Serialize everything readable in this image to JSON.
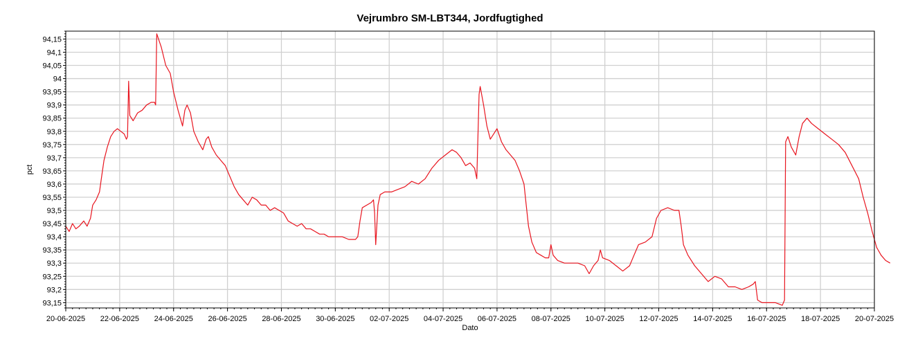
{
  "chart_data": {
    "type": "line",
    "title": "Vejrumbro SM-LBT344, Jordfugtighed",
    "xlabel": "Dato",
    "ylabel": "pct",
    "grid": true,
    "xlim": [
      "2025-06-20",
      "2025-07-20"
    ],
    "ylim": [
      93.13,
      94.18
    ],
    "y_ticks": [
      93.15,
      93.2,
      93.25,
      93.3,
      93.35,
      93.4,
      93.45,
      93.5,
      93.55,
      93.6,
      93.65,
      93.7,
      93.75,
      93.8,
      93.85,
      93.9,
      93.95,
      94,
      94.05,
      94.1,
      94.15
    ],
    "y_tick_labels": [
      "93,15",
      "93,2",
      "93,25",
      "93,3",
      "93,35",
      "93,4",
      "93,45",
      "93,5",
      "93,55",
      "93,6",
      "93,65",
      "93,7",
      "93,75",
      "93,8",
      "93,85",
      "93,9",
      "93,95",
      "94",
      "94,05",
      "94,1",
      "94,15"
    ],
    "x_ticks": [
      "2025-06-20",
      "2025-06-22",
      "2025-06-24",
      "2025-06-26",
      "2025-06-28",
      "2025-06-30",
      "2025-07-02",
      "2025-07-04",
      "2025-07-06",
      "2025-07-08",
      "2025-07-10",
      "2025-07-12",
      "2025-07-14",
      "2025-07-16",
      "2025-07-18",
      "2025-07-20"
    ],
    "x_tick_labels": [
      "20-06-2025",
      "22-06-2025",
      "24-06-2025",
      "26-06-2025",
      "28-06-2025",
      "30-06-2025",
      "02-07-2025",
      "04-07-2025",
      "06-07-2025",
      "08-07-2025",
      "10-07-2025",
      "12-07-2025",
      "14-07-2025",
      "16-07-2025",
      "18-07-2025",
      "20-07-2025"
    ],
    "series": [
      {
        "color": "#e8141e",
        "points": [
          [
            "2025-06-20 00:00",
            93.44
          ],
          [
            "2025-06-20 03:00",
            93.42
          ],
          [
            "2025-06-20 06:00",
            93.45
          ],
          [
            "2025-06-20 09:00",
            93.43
          ],
          [
            "2025-06-20 12:00",
            93.44
          ],
          [
            "2025-06-20 16:00",
            93.46
          ],
          [
            "2025-06-20 19:00",
            93.44
          ],
          [
            "2025-06-20 22:00",
            93.47
          ],
          [
            "2025-06-21 00:00",
            93.52
          ],
          [
            "2025-06-21 03:00",
            93.54
          ],
          [
            "2025-06-21 06:00",
            93.57
          ],
          [
            "2025-06-21 08:00",
            93.63
          ],
          [
            "2025-06-21 10:00",
            93.69
          ],
          [
            "2025-06-21 13:00",
            93.74
          ],
          [
            "2025-06-21 16:00",
            93.78
          ],
          [
            "2025-06-21 19:00",
            93.8
          ],
          [
            "2025-06-21 22:00",
            93.81
          ],
          [
            "2025-06-22 01:00",
            93.8
          ],
          [
            "2025-06-22 04:00",
            93.79
          ],
          [
            "2025-06-22 06:00",
            93.77
          ],
          [
            "2025-06-22 07:00",
            93.78
          ],
          [
            "2025-06-22 08:00",
            93.99
          ],
          [
            "2025-06-22 09:00",
            93.86
          ],
          [
            "2025-06-22 12:00",
            93.84
          ],
          [
            "2025-06-22 16:00",
            93.87
          ],
          [
            "2025-06-22 20:00",
            93.88
          ],
          [
            "2025-06-23 00:00",
            93.9
          ],
          [
            "2025-06-23 04:00",
            93.91
          ],
          [
            "2025-06-23 07:00",
            93.91
          ],
          [
            "2025-06-23 08:00",
            93.9
          ],
          [
            "2025-06-23 09:00",
            94.17
          ],
          [
            "2025-06-23 13:00",
            94.12
          ],
          [
            "2025-06-23 17:00",
            94.05
          ],
          [
            "2025-06-23 21:00",
            94.02
          ],
          [
            "2025-06-24 00:00",
            93.95
          ],
          [
            "2025-06-24 04:00",
            93.88
          ],
          [
            "2025-06-24 08:00",
            93.82
          ],
          [
            "2025-06-24 10:00",
            93.88
          ],
          [
            "2025-06-24 12:00",
            93.9
          ],
          [
            "2025-06-24 15:00",
            93.87
          ],
          [
            "2025-06-24 18:00",
            93.8
          ],
          [
            "2025-06-24 22:00",
            93.76
          ],
          [
            "2025-06-25 02:00",
            93.73
          ],
          [
            "2025-06-25 05:00",
            93.77
          ],
          [
            "2025-06-25 07:00",
            93.78
          ],
          [
            "2025-06-25 10:00",
            93.74
          ],
          [
            "2025-06-25 14:00",
            93.71
          ],
          [
            "2025-06-25 18:00",
            93.69
          ],
          [
            "2025-06-25 22:00",
            93.67
          ],
          [
            "2025-06-26 02:00",
            93.63
          ],
          [
            "2025-06-26 06:00",
            93.59
          ],
          [
            "2025-06-26 10:00",
            93.56
          ],
          [
            "2025-06-26 14:00",
            93.54
          ],
          [
            "2025-06-26 18:00",
            93.52
          ],
          [
            "2025-06-26 22:00",
            93.55
          ],
          [
            "2025-06-27 02:00",
            93.54
          ],
          [
            "2025-06-27 06:00",
            93.52
          ],
          [
            "2025-06-27 10:00",
            93.52
          ],
          [
            "2025-06-27 14:00",
            93.5
          ],
          [
            "2025-06-27 18:00",
            93.51
          ],
          [
            "2025-06-27 22:00",
            93.5
          ],
          [
            "2025-06-28 02:00",
            93.49
          ],
          [
            "2025-06-28 06:00",
            93.46
          ],
          [
            "2025-06-28 10:00",
            93.45
          ],
          [
            "2025-06-28 14:00",
            93.44
          ],
          [
            "2025-06-28 18:00",
            93.45
          ],
          [
            "2025-06-28 22:00",
            93.43
          ],
          [
            "2025-06-29 02:00",
            93.43
          ],
          [
            "2025-06-29 06:00",
            93.42
          ],
          [
            "2025-06-29 10:00",
            93.41
          ],
          [
            "2025-06-29 14:00",
            93.41
          ],
          [
            "2025-06-29 18:00",
            93.4
          ],
          [
            "2025-06-30 00:00",
            93.4
          ],
          [
            "2025-06-30 06:00",
            93.4
          ],
          [
            "2025-06-30 12:00",
            93.39
          ],
          [
            "2025-06-30 18:00",
            93.39
          ],
          [
            "2025-06-30 20:00",
            93.4
          ],
          [
            "2025-06-30 22:00",
            93.46
          ],
          [
            "2025-07-01 00:00",
            93.51
          ],
          [
            "2025-07-01 04:00",
            93.52
          ],
          [
            "2025-07-01 08:00",
            93.53
          ],
          [
            "2025-07-01 10:00",
            93.54
          ],
          [
            "2025-07-01 11:00",
            93.49
          ],
          [
            "2025-07-01 12:00",
            93.37
          ],
          [
            "2025-07-01 14:00",
            93.52
          ],
          [
            "2025-07-01 16:00",
            93.56
          ],
          [
            "2025-07-01 20:00",
            93.57
          ],
          [
            "2025-07-02 02:00",
            93.57
          ],
          [
            "2025-07-02 08:00",
            93.58
          ],
          [
            "2025-07-02 14:00",
            93.59
          ],
          [
            "2025-07-02 20:00",
            93.61
          ],
          [
            "2025-07-03 02:00",
            93.6
          ],
          [
            "2025-07-03 08:00",
            93.62
          ],
          [
            "2025-07-03 14:00",
            93.66
          ],
          [
            "2025-07-03 20:00",
            93.69
          ],
          [
            "2025-07-04 02:00",
            93.71
          ],
          [
            "2025-07-04 08:00",
            93.73
          ],
          [
            "2025-07-04 12:00",
            93.72
          ],
          [
            "2025-07-04 16:00",
            93.7
          ],
          [
            "2025-07-04 20:00",
            93.67
          ],
          [
            "2025-07-05 00:00",
            93.68
          ],
          [
            "2025-07-05 04:00",
            93.66
          ],
          [
            "2025-07-05 06:00",
            93.62
          ],
          [
            "2025-07-05 08:00",
            93.94
          ],
          [
            "2025-07-05 09:00",
            93.97
          ],
          [
            "2025-07-05 12:00",
            93.9
          ],
          [
            "2025-07-05 15:00",
            93.82
          ],
          [
            "2025-07-05 18:00",
            93.77
          ],
          [
            "2025-07-05 21:00",
            93.79
          ],
          [
            "2025-07-06 00:00",
            93.81
          ],
          [
            "2025-07-06 04:00",
            93.76
          ],
          [
            "2025-07-06 08:00",
            93.73
          ],
          [
            "2025-07-06 12:00",
            93.71
          ],
          [
            "2025-07-06 16:00",
            93.69
          ],
          [
            "2025-07-06 20:00",
            93.65
          ],
          [
            "2025-07-07 00:00",
            93.6
          ],
          [
            "2025-07-07 02:00",
            93.52
          ],
          [
            "2025-07-07 04:00",
            93.44
          ],
          [
            "2025-07-07 07:00",
            93.38
          ],
          [
            "2025-07-07 11:00",
            93.34
          ],
          [
            "2025-07-07 15:00",
            93.33
          ],
          [
            "2025-07-07 19:00",
            93.32
          ],
          [
            "2025-07-07 22:00",
            93.32
          ],
          [
            "2025-07-08 00:00",
            93.37
          ],
          [
            "2025-07-08 02:00",
            93.33
          ],
          [
            "2025-07-08 06:00",
            93.31
          ],
          [
            "2025-07-08 12:00",
            93.3
          ],
          [
            "2025-07-08 18:00",
            93.3
          ],
          [
            "2025-07-09 00:00",
            93.3
          ],
          [
            "2025-07-09 06:00",
            93.29
          ],
          [
            "2025-07-09 10:00",
            93.26
          ],
          [
            "2025-07-09 14:00",
            93.29
          ],
          [
            "2025-07-09 18:00",
            93.31
          ],
          [
            "2025-07-09 20:00",
            93.35
          ],
          [
            "2025-07-09 22:00",
            93.32
          ],
          [
            "2025-07-10 04:00",
            93.31
          ],
          [
            "2025-07-10 10:00",
            93.29
          ],
          [
            "2025-07-10 16:00",
            93.27
          ],
          [
            "2025-07-10 22:00",
            93.29
          ],
          [
            "2025-07-11 02:00",
            93.33
          ],
          [
            "2025-07-11 06:00",
            93.37
          ],
          [
            "2025-07-11 12:00",
            93.38
          ],
          [
            "2025-07-11 18:00",
            93.4
          ],
          [
            "2025-07-11 22:00",
            93.47
          ],
          [
            "2025-07-12 02:00",
            93.5
          ],
          [
            "2025-07-12 08:00",
            93.51
          ],
          [
            "2025-07-12 14:00",
            93.5
          ],
          [
            "2025-07-12 18:00",
            93.5
          ],
          [
            "2025-07-12 20:00",
            93.44
          ],
          [
            "2025-07-12 22:00",
            93.37
          ],
          [
            "2025-07-13 02:00",
            93.33
          ],
          [
            "2025-07-13 08:00",
            93.29
          ],
          [
            "2025-07-13 14:00",
            93.26
          ],
          [
            "2025-07-13 20:00",
            93.23
          ],
          [
            "2025-07-14 02:00",
            93.25
          ],
          [
            "2025-07-14 08:00",
            93.24
          ],
          [
            "2025-07-14 14:00",
            93.21
          ],
          [
            "2025-07-14 20:00",
            93.21
          ],
          [
            "2025-07-15 02:00",
            93.2
          ],
          [
            "2025-07-15 08:00",
            93.21
          ],
          [
            "2025-07-15 12:00",
            93.22
          ],
          [
            "2025-07-15 14:00",
            93.23
          ],
          [
            "2025-07-15 16:00",
            93.16
          ],
          [
            "2025-07-15 20:00",
            93.15
          ],
          [
            "2025-07-16 02:00",
            93.15
          ],
          [
            "2025-07-16 08:00",
            93.15
          ],
          [
            "2025-07-16 14:00",
            93.14
          ],
          [
            "2025-07-16 16:00",
            93.16
          ],
          [
            "2025-07-16 17:00",
            93.76
          ],
          [
            "2025-07-16 19:00",
            93.78
          ],
          [
            "2025-07-16 22:00",
            93.74
          ],
          [
            "2025-07-17 02:00",
            93.71
          ],
          [
            "2025-07-17 05:00",
            93.78
          ],
          [
            "2025-07-17 08:00",
            93.83
          ],
          [
            "2025-07-17 12:00",
            93.85
          ],
          [
            "2025-07-17 16:00",
            93.83
          ],
          [
            "2025-07-17 22:00",
            93.81
          ],
          [
            "2025-07-18 04:00",
            93.79
          ],
          [
            "2025-07-18 10:00",
            93.77
          ],
          [
            "2025-07-18 16:00",
            93.75
          ],
          [
            "2025-07-18 22:00",
            93.72
          ],
          [
            "2025-07-19 04:00",
            93.67
          ],
          [
            "2025-07-19 10:00",
            93.62
          ],
          [
            "2025-07-19 14:00",
            93.55
          ],
          [
            "2025-07-19 18:00",
            93.49
          ],
          [
            "2025-07-19 22:00",
            93.42
          ],
          [
            "2025-07-20 02:00",
            93.36
          ],
          [
            "2025-07-20 06:00",
            93.33
          ],
          [
            "2025-07-20 10:00",
            93.31
          ],
          [
            "2025-07-20 14:00",
            93.3
          ]
        ]
      }
    ]
  }
}
